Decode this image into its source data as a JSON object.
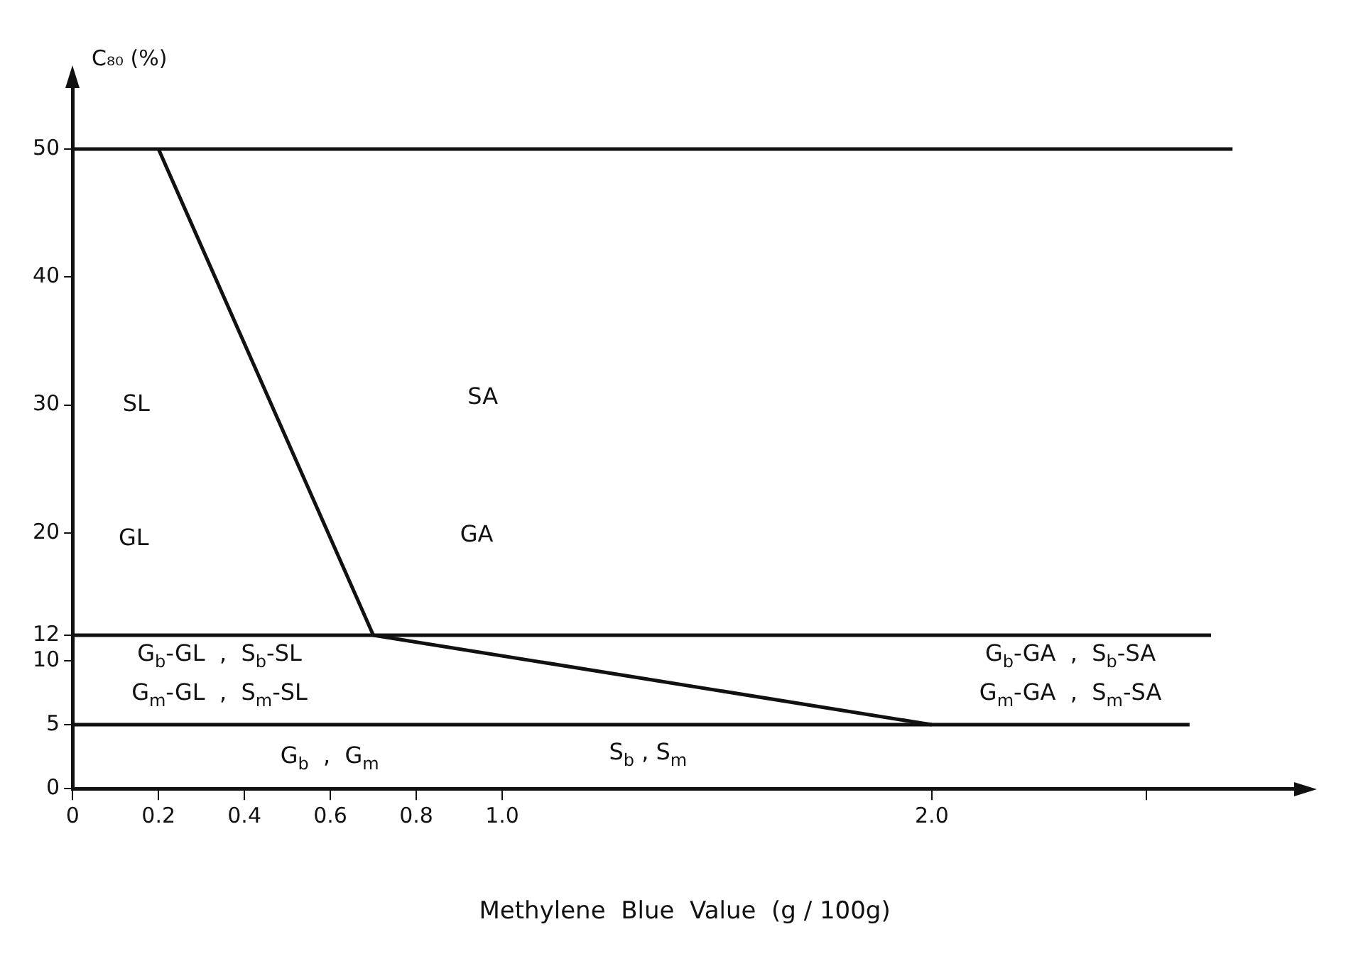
{
  "chart_data": {
    "type": "line",
    "xlabel": "Methylene  Blue  Value  (g / 100g)",
    "ylabel": "C₈₀ (%)",
    "xlim": [
      0,
      2.85
    ],
    "xticks": [
      0,
      0.2,
      0.4,
      0.6,
      0.8,
      {
        "value": 1,
        "label": "1.0"
      },
      {
        "value": 2,
        "label": "2.0"
      },
      {
        "value": 2.5,
        "label": null
      }
    ],
    "ylim": [
      0,
      55
    ],
    "yticks": [
      0,
      5,
      10,
      12,
      20,
      30,
      40,
      50
    ],
    "grid": false,
    "legend": false,
    "marker": "none",
    "line_style": "solid",
    "series": [
      {
        "color": "#111111",
        "x": [
          0,
          2.7
        ],
        "values": [
          50,
          50
        ]
      },
      {
        "color": "#111111",
        "x": [
          0,
          2.65
        ],
        "values": [
          12,
          12
        ]
      },
      {
        "color": "#111111",
        "x": [
          0,
          2.6
        ],
        "values": [
          5,
          5
        ]
      },
      {
        "color": "#111111",
        "x": [
          0.2,
          0.7,
          2.0
        ],
        "values": [
          50,
          12,
          5
        ]
      }
    ],
    "annotations": [
      "SL",
      "SA",
      "GL",
      "GA",
      "G$_{b}$-GL  ,  S$_{b}$-SL",
      "G$_{m}$-GL  ,  S$_{m}$-SL",
      "G$_{b}$-GA  ,  S$_{b}$-SA",
      "G$_{m}$-GA  ,  S$_{m}$-SA",
      "G$_{b}$  ,  G$_{m}$",
      "S$_{b}$ , S$_{m}$"
    ]
  }
}
